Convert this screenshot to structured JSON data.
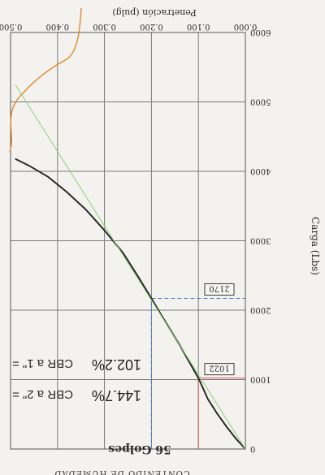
{
  "chart_data": {
    "type": "line",
    "orientation": "rotated-180",
    "xlabel": "Penetración (pulg)",
    "ylabel": "Carga (Lbs)",
    "title": "56 Golpes",
    "x_ticks": [
      "0.000",
      "0.100",
      "0.200",
      "0.300",
      "0.400",
      "0.500"
    ],
    "y_ticks": [
      "0",
      "1000",
      "2000",
      "3000",
      "4000",
      "5000",
      "6000"
    ],
    "xlim": [
      0,
      0.5
    ],
    "ylim": [
      0,
      6000
    ],
    "grid": true,
    "series": [
      {
        "points": [
          [
            0.0,
            0
          ],
          [
            0.02,
            150
          ],
          [
            0.04,
            320
          ],
          [
            0.06,
            510
          ],
          [
            0.08,
            720
          ],
          [
            0.1,
            1022
          ],
          [
            0.12,
            1260
          ],
          [
            0.14,
            1500
          ],
          [
            0.16,
            1720
          ],
          [
            0.18,
            1940
          ],
          [
            0.2,
            2170
          ],
          [
            0.23,
            2500
          ],
          [
            0.26,
            2820
          ],
          [
            0.3,
            3150
          ],
          [
            0.34,
            3450
          ],
          [
            0.38,
            3700
          ],
          [
            0.42,
            3920
          ],
          [
            0.46,
            4080
          ],
          [
            0.49,
            4180
          ]
        ],
        "color": "#2a2a2a"
      },
      {
        "points": [
          [
            0.0,
            0
          ],
          [
            0.49,
            5250
          ]
        ],
        "color": "#8fd07a"
      }
    ],
    "reference_lines": [
      {
        "x": 0.1,
        "y": 1022,
        "color": "#e05858"
      },
      {
        "x": 0.2,
        "y": 2170,
        "color": "#3a7fd0"
      }
    ],
    "annotations": [
      {
        "text": "1022",
        "y": 1022
      },
      {
        "text": "2170",
        "y": 2170
      }
    ],
    "results": {
      "cbr1": {
        "label": "CBR a 1\" =",
        "value": "102.2%"
      },
      "cbr2": {
        "label": "CBR a 2\" =",
        "value": "144.7%"
      }
    },
    "footer_text": "CONTENIDO DE HUMEDAD"
  },
  "colors": {
    "background": "#f3f2ee",
    "grid": "#7a7a7a",
    "text": "#2b2b2b",
    "marker": "#e0892a"
  }
}
